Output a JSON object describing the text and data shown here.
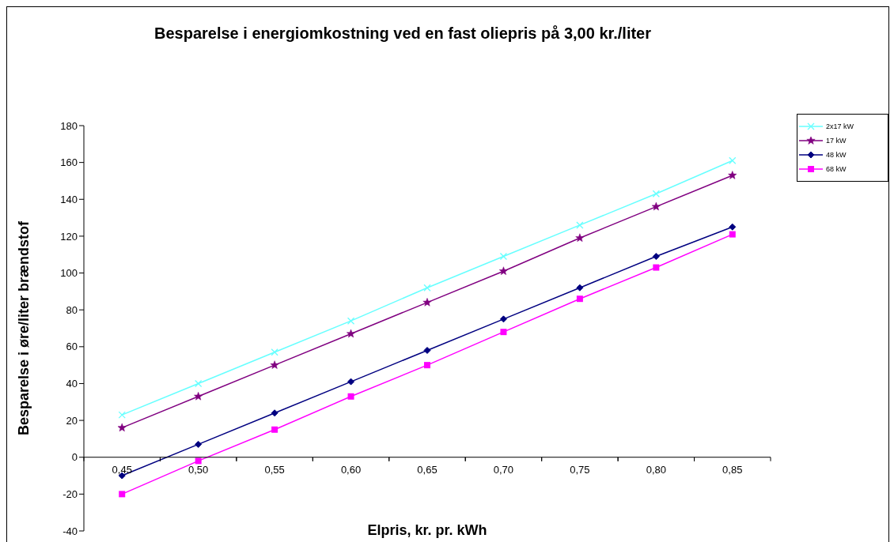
{
  "chart_data": {
    "type": "line",
    "title": "Besparelse i energiomkostning ved en fast oliepris på 3,00 kr./liter",
    "xlabel": "Elpris, kr. pr. kWh",
    "ylabel": "Besparelse i øre/liter brændstof",
    "categories": [
      "0,45",
      "0,50",
      "0,55",
      "0,60",
      "0,65",
      "0,70",
      "0,75",
      "0,80",
      "0,85"
    ],
    "series": [
      {
        "name": "2x17 kW",
        "color": "#66ffff",
        "marker": "cross",
        "values": [
          23,
          40,
          57,
          74,
          92,
          109,
          126,
          143,
          161
        ]
      },
      {
        "name": "17 kW",
        "color": "#800080",
        "marker": "star",
        "values": [
          16,
          33,
          50,
          67,
          84,
          101,
          119,
          136,
          153
        ]
      },
      {
        "name": "48 kW",
        "color": "#000080",
        "marker": "diamond",
        "values": [
          -10,
          7,
          24,
          41,
          58,
          75,
          92,
          109,
          125
        ]
      },
      {
        "name": "68 kW",
        "color": "#ff00ff",
        "marker": "square",
        "values": [
          -20,
          -2,
          15,
          33,
          50,
          68,
          86,
          103,
          121
        ]
      }
    ],
    "ylim": [
      -40,
      180
    ],
    "yticks": [
      -40,
      -20,
      0,
      20,
      40,
      60,
      80,
      100,
      120,
      140,
      160,
      180
    ],
    "grid": false,
    "legend": "top right"
  }
}
